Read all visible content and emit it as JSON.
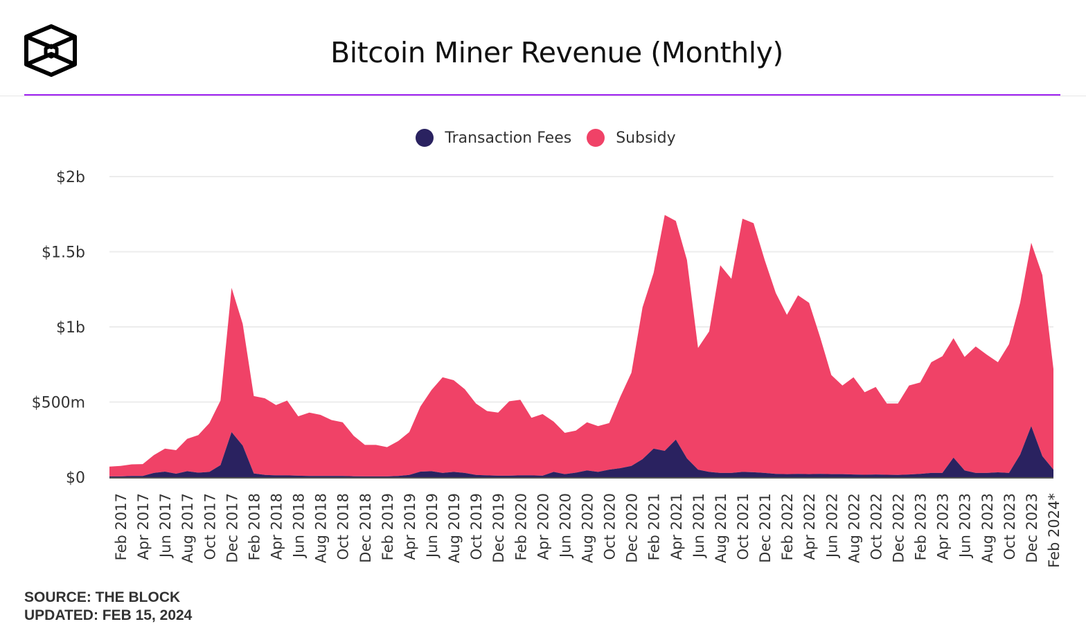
{
  "header": {
    "title": "Bitcoin Miner Revenue (Monthly)",
    "logo": "The Block"
  },
  "footer": {
    "source": "SOURCE: THE BLOCK",
    "updated": "UPDATED: FEB 15, 2024"
  },
  "colors": {
    "fees": "#2a2260",
    "subsidy": "#f04267",
    "accent_line": "#9d1ff0"
  },
  "chart_data": {
    "type": "area",
    "stacked": true,
    "title": "Bitcoin Miner Revenue (Monthly)",
    "unit": "USD billions",
    "ylim": [
      0,
      2
    ],
    "y_ticks": [
      {
        "value": 0,
        "label": "$0"
      },
      {
        "value": 0.5,
        "label": "$500m"
      },
      {
        "value": 1,
        "label": "$1b"
      },
      {
        "value": 1.5,
        "label": "$1.5b"
      },
      {
        "value": 2,
        "label": "$2b"
      }
    ],
    "grid": true,
    "legend": "top-center",
    "x": [
      "Jan 2017",
      "Feb 2017",
      "Mar 2017",
      "Apr 2017",
      "May 2017",
      "Jun 2017",
      "Jul 2017",
      "Aug 2017",
      "Sep 2017",
      "Oct 2017",
      "Nov 2017",
      "Dec 2017",
      "Jan 2018",
      "Feb 2018",
      "Mar 2018",
      "Apr 2018",
      "May 2018",
      "Jun 2018",
      "Jul 2018",
      "Aug 2018",
      "Sep 2018",
      "Oct 2018",
      "Nov 2018",
      "Dec 2018",
      "Jan 2019",
      "Feb 2019",
      "Mar 2019",
      "Apr 2019",
      "May 2019",
      "Jun 2019",
      "Jul 2019",
      "Aug 2019",
      "Sep 2019",
      "Oct 2019",
      "Nov 2019",
      "Dec 2019",
      "Jan 2020",
      "Feb 2020",
      "Mar 2020",
      "Apr 2020",
      "May 2020",
      "Jun 2020",
      "Jul 2020",
      "Aug 2020",
      "Sep 2020",
      "Oct 2020",
      "Nov 2020",
      "Dec 2020",
      "Jan 2021",
      "Feb 2021",
      "Mar 2021",
      "Apr 2021",
      "May 2021",
      "Jun 2021",
      "Jul 2021",
      "Aug 2021",
      "Sep 2021",
      "Oct 2021",
      "Nov 2021",
      "Dec 2021",
      "Jan 2022",
      "Feb 2022",
      "Mar 2022",
      "Apr 2022",
      "May 2022",
      "Jun 2022",
      "Jul 2022",
      "Aug 2022",
      "Sep 2022",
      "Oct 2022",
      "Nov 2022",
      "Dec 2022",
      "Jan 2023",
      "Feb 2023",
      "Mar 2023",
      "Apr 2023",
      "May 2023",
      "Jun 2023",
      "Jul 2023",
      "Aug 2023",
      "Sep 2023",
      "Oct 2023",
      "Nov 2023",
      "Dec 2023",
      "Jan 2024",
      "Feb 2024*"
    ],
    "x_tick_every": 2,
    "x_tick_start": 1,
    "series": [
      {
        "name": "Transaction Fees",
        "color": "#2a2260",
        "values": [
          0.005,
          0.005,
          0.008,
          0.008,
          0.028,
          0.037,
          0.023,
          0.04,
          0.03,
          0.035,
          0.08,
          0.3,
          0.21,
          0.025,
          0.015,
          0.012,
          0.012,
          0.01,
          0.008,
          0.008,
          0.008,
          0.008,
          0.006,
          0.005,
          0.005,
          0.005,
          0.008,
          0.015,
          0.037,
          0.04,
          0.028,
          0.035,
          0.028,
          0.015,
          0.012,
          0.01,
          0.01,
          0.012,
          0.012,
          0.01,
          0.035,
          0.02,
          0.03,
          0.045,
          0.035,
          0.05,
          0.06,
          0.075,
          0.12,
          0.19,
          0.175,
          0.25,
          0.125,
          0.05,
          0.035,
          0.028,
          0.028,
          0.035,
          0.033,
          0.028,
          0.022,
          0.02,
          0.022,
          0.02,
          0.022,
          0.02,
          0.02,
          0.018,
          0.016,
          0.018,
          0.016,
          0.015,
          0.018,
          0.022,
          0.028,
          0.028,
          0.13,
          0.045,
          0.028,
          0.028,
          0.032,
          0.028,
          0.15,
          0.34,
          0.14,
          0.05
        ]
      },
      {
        "name": "Subsidy",
        "color": "#f04267",
        "values": [
          0.065,
          0.07,
          0.077,
          0.079,
          0.119,
          0.153,
          0.157,
          0.215,
          0.25,
          0.325,
          0.43,
          0.96,
          0.81,
          0.515,
          0.51,
          0.468,
          0.498,
          0.395,
          0.422,
          0.407,
          0.372,
          0.357,
          0.269,
          0.21,
          0.21,
          0.195,
          0.232,
          0.285,
          0.433,
          0.54,
          0.637,
          0.61,
          0.557,
          0.475,
          0.428,
          0.42,
          0.495,
          0.503,
          0.383,
          0.41,
          0.335,
          0.275,
          0.28,
          0.32,
          0.305,
          0.31,
          0.475,
          0.62,
          1.01,
          1.17,
          1.57,
          1.455,
          1.32,
          0.81,
          0.935,
          1.382,
          1.292,
          1.685,
          1.657,
          1.417,
          1.203,
          1.06,
          1.188,
          1.14,
          0.908,
          0.66,
          0.59,
          0.647,
          0.549,
          0.582,
          0.474,
          0.475,
          0.592,
          0.608,
          0.737,
          0.777,
          0.795,
          0.755,
          0.842,
          0.787,
          0.733,
          0.857,
          1.01,
          1.22,
          1.205,
          0.67
        ]
      }
    ]
  }
}
